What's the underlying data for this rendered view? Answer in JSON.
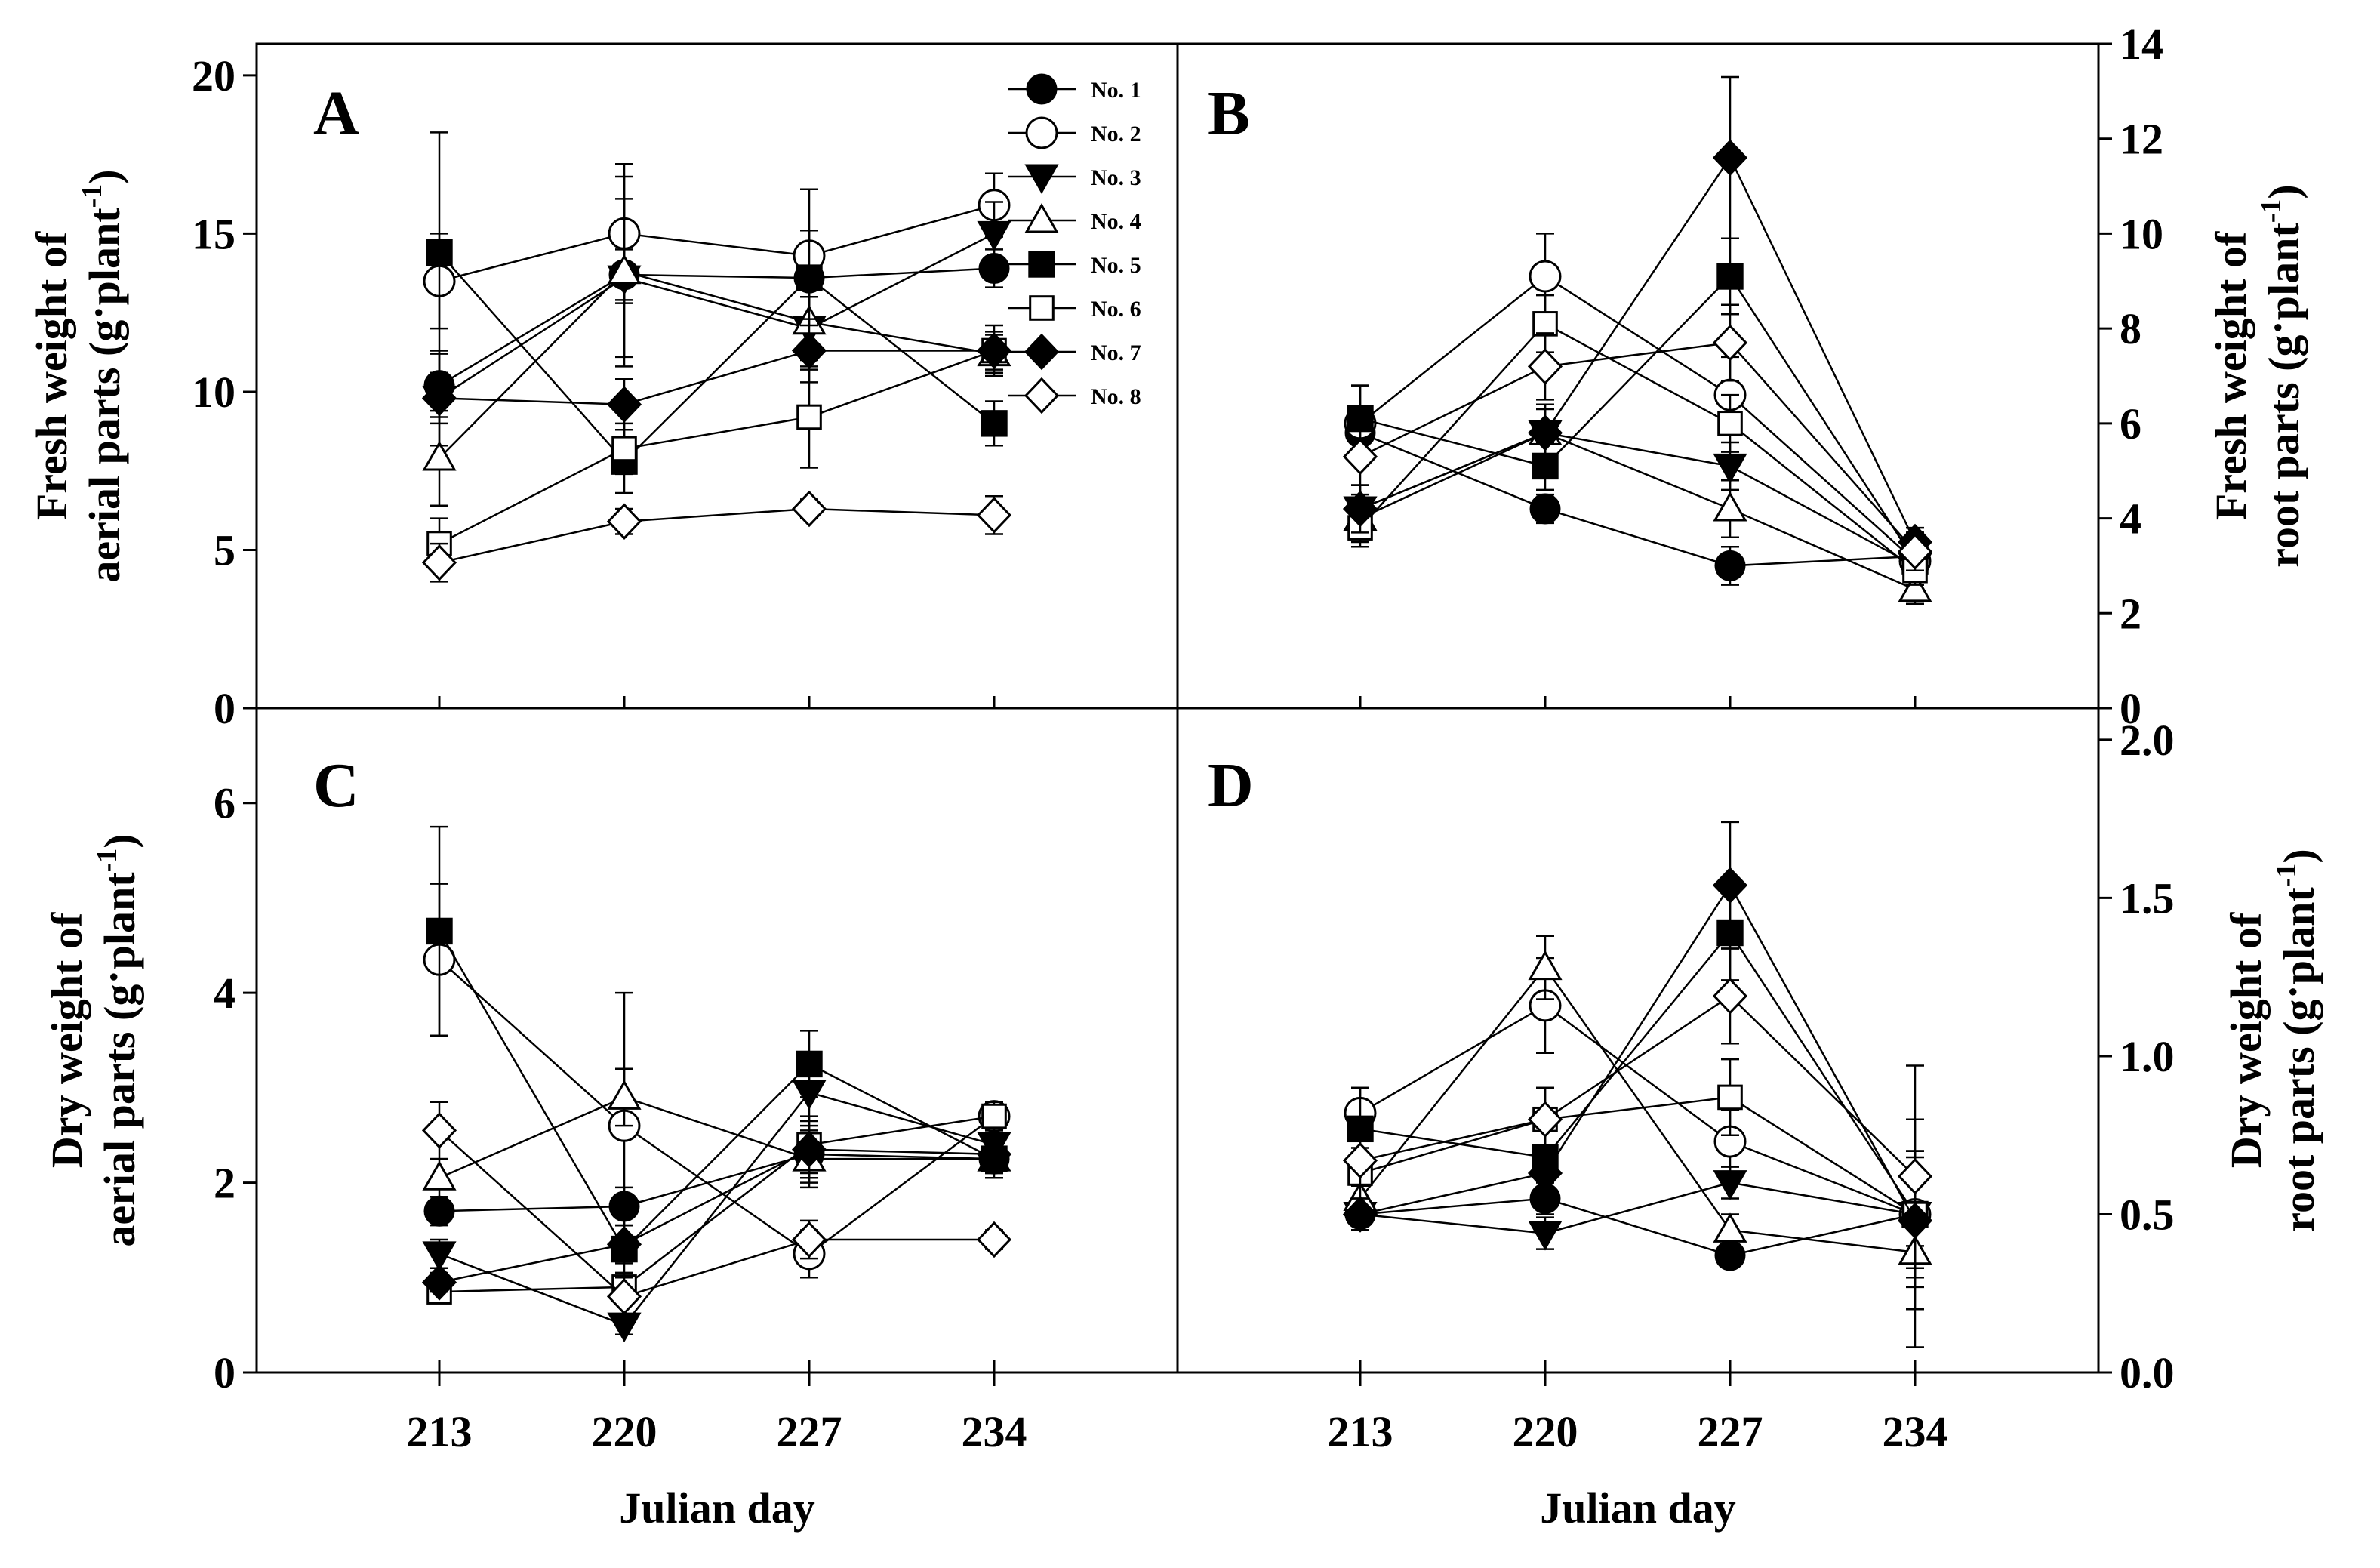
{
  "chart_data": {
    "type": "line",
    "xlabel": "Julian day",
    "x": [
      213,
      220,
      227,
      234
    ],
    "legend": {
      "placement": "top-right of panel A",
      "entries": [
        {
          "name": "No. 1",
          "marker": "circle",
          "fill": "filled"
        },
        {
          "name": "No. 2",
          "marker": "circle",
          "fill": "open"
        },
        {
          "name": "No. 3",
          "marker": "triangle-down",
          "fill": "filled"
        },
        {
          "name": "No. 4",
          "marker": "triangle-up",
          "fill": "open"
        },
        {
          "name": "No. 5",
          "marker": "square",
          "fill": "filled"
        },
        {
          "name": "No. 6",
          "marker": "square",
          "fill": "open"
        },
        {
          "name": "No. 7",
          "marker": "diamond",
          "fill": "filled"
        },
        {
          "name": "No. 8",
          "marker": "diamond",
          "fill": "open"
        }
      ]
    },
    "panels": [
      {
        "id": "A",
        "label": "A",
        "ylabel_line1": "Fresh weight of",
        "ylabel_line2_pre": "aerial parts (g",
        "ylabel_line2_mid": "plant",
        "ylabel_sup": "-1",
        "ylabel_line2_post": ")",
        "ylabel_side": "left",
        "ylim": [
          0,
          21
        ],
        "yticks": [
          0,
          5,
          10,
          15,
          20
        ],
        "ytick_labels": [
          "0",
          "5",
          "10",
          "15",
          "20"
        ],
        "series": [
          {
            "name": "No. 1",
            "values": [
              10.2,
              13.7,
              13.6,
              13.9
            ],
            "err": [
              1.0,
              0.8,
              1.5,
              0.6
            ]
          },
          {
            "name": "No. 2",
            "values": [
              13.5,
              15.0,
              14.3,
              15.9
            ],
            "err": [
              1.5,
              2.2,
              2.1,
              1.0
            ]
          },
          {
            "name": "No. 3",
            "values": [
              9.8,
              13.6,
              12.0,
              15.0
            ],
            "err": [
              0.8,
              2.5,
              1.0,
              1.0
            ]
          },
          {
            "name": "No. 4",
            "values": [
              7.9,
              13.8,
              12.2,
              11.2
            ],
            "err": [
              1.5,
              3.0,
              1.5,
              0.6
            ]
          },
          {
            "name": "No. 5",
            "values": [
              14.4,
              7.8,
              13.6,
              9.0
            ],
            "err": [
              3.8,
              1.0,
              1.5,
              0.7
            ]
          },
          {
            "name": "No. 6",
            "values": [
              5.2,
              8.2,
              9.2,
              11.3
            ],
            "err": [
              0.8,
              0.8,
              1.6,
              0.8
            ]
          },
          {
            "name": "No. 7",
            "values": [
              9.8,
              9.6,
              11.3,
              11.3
            ],
            "err": [
              1.5,
              0.8,
              1.0,
              0.6
            ]
          },
          {
            "name": "No. 8",
            "values": [
              4.6,
              5.9,
              6.3,
              6.1
            ],
            "err": [
              0.6,
              0.4,
              0.3,
              0.6
            ]
          }
        ]
      },
      {
        "id": "B",
        "label": "B",
        "ylabel_line1": "Fresh weight of",
        "ylabel_line2_pre": "root parts (g",
        "ylabel_line2_mid": "plant",
        "ylabel_sup": "-1",
        "ylabel_line2_post": ")",
        "ylabel_side": "right",
        "ylim": [
          0,
          14
        ],
        "yticks": [
          0,
          2,
          4,
          6,
          8,
          10,
          12,
          14
        ],
        "ytick_labels": [
          "0",
          "2",
          "4",
          "6",
          "8",
          "10",
          "12",
          "14"
        ],
        "series": [
          {
            "name": "No. 1",
            "values": [
              5.8,
              4.2,
              3.0,
              3.2
            ],
            "err": [
              0.5,
              0.3,
              0.4,
              0.3
            ]
          },
          {
            "name": "No. 2",
            "values": [
              6.0,
              9.1,
              6.6,
              3.1
            ],
            "err": [
              0.8,
              0.9,
              0.8,
              0.4
            ]
          },
          {
            "name": "No. 3",
            "values": [
              4.2,
              5.8,
              5.1,
              3.0
            ],
            "err": [
              0.5,
              0.5,
              0.5,
              0.4
            ]
          },
          {
            "name": "No. 4",
            "values": [
              4.0,
              5.8,
              4.2,
              2.5
            ],
            "err": [
              0.5,
              0.6,
              0.6,
              0.3
            ]
          },
          {
            "name": "No. 5",
            "values": [
              6.1,
              5.1,
              9.1,
              3.1
            ],
            "err": [
              0.7,
              0.5,
              0.8,
              0.3
            ]
          },
          {
            "name": "No. 6",
            "values": [
              3.8,
              8.1,
              6.0,
              2.9
            ],
            "err": [
              0.4,
              0.6,
              0.6,
              0.3
            ]
          },
          {
            "name": "No. 7",
            "values": [
              4.2,
              5.8,
              11.6,
              3.5
            ],
            "err": [
              0.5,
              0.6,
              1.7,
              0.3
            ]
          },
          {
            "name": "No. 8",
            "values": [
              5.3,
              7.2,
              7.7,
              3.3
            ],
            "err": [
              0.6,
              0.7,
              0.8,
              0.4
            ]
          }
        ]
      },
      {
        "id": "C",
        "label": "C",
        "ylabel_line1": "Dry weight of",
        "ylabel_line2_pre": "aerial parts (g",
        "ylabel_line2_mid": "plant",
        "ylabel_sup": "-1",
        "ylabel_line2_post": ")",
        "ylabel_side": "left",
        "ylim": [
          0,
          7
        ],
        "yticks": [
          0,
          2,
          4,
          6
        ],
        "ytick_labels": [
          "0",
          "2",
          "4",
          "6"
        ],
        "series": [
          {
            "name": "No. 1",
            "values": [
              1.7,
              1.75,
              2.3,
              2.25
            ],
            "err": [
              0.15,
              0.2,
              0.3,
              0.15
            ]
          },
          {
            "name": "No. 2",
            "values": [
              4.35,
              2.6,
              1.25,
              2.7
            ],
            "err": [
              0.8,
              1.4,
              0.25,
              0.15
            ]
          },
          {
            "name": "No. 3",
            "values": [
              1.25,
              0.5,
              2.95,
              2.4
            ],
            "err": [
              0.15,
              0.1,
              0.3,
              0.2
            ]
          },
          {
            "name": "No. 4",
            "values": [
              2.05,
              2.9,
              2.25,
              2.25
            ],
            "err": [
              0.2,
              0.3,
              0.3,
              0.2
            ]
          },
          {
            "name": "No. 5",
            "values": [
              4.65,
              1.3,
              3.25,
              2.25
            ],
            "err": [
              1.1,
              0.25,
              0.35,
              0.15
            ]
          },
          {
            "name": "No. 6",
            "values": [
              0.85,
              0.9,
              2.4,
              2.7
            ],
            "err": [
              0.1,
              0.15,
              0.3,
              0.15
            ]
          },
          {
            "name": "No. 7",
            "values": [
              0.95,
              1.35,
              2.35,
              2.3
            ],
            "err": [
              0.1,
              0.2,
              0.3,
              0.15
            ]
          },
          {
            "name": "No. 8",
            "values": [
              2.55,
              0.8,
              1.4,
              1.4
            ],
            "err": [
              0.3,
              0.2,
              0.2,
              0.1
            ]
          }
        ]
      },
      {
        "id": "D",
        "label": "D",
        "ylabel_line1": "Dry weight of",
        "ylabel_line2_pre": "root parts (g",
        "ylabel_line2_mid": "plant",
        "ylabel_sup": "-1",
        "ylabel_line2_post": ")",
        "ylabel_side": "right",
        "ylim": [
          0,
          2.1
        ],
        "yticks": [
          0,
          0.5,
          1.0,
          1.5,
          2.0
        ],
        "ytick_labels": [
          "0.0",
          "0.5",
          "1.0",
          "1.5",
          "2.0"
        ],
        "series": [
          {
            "name": "No. 1",
            "values": [
              0.5,
              0.55,
              0.37,
              0.5
            ],
            "err": [
              0.05,
              0.05,
              0.03,
              0.1
            ]
          },
          {
            "name": "No. 2",
            "values": [
              0.82,
              1.16,
              0.73,
              0.5
            ],
            "err": [
              0.08,
              0.15,
              0.1,
              0.2
            ]
          },
          {
            "name": "No. 3",
            "values": [
              0.5,
              0.44,
              0.6,
              0.5
            ],
            "err": [
              0.05,
              0.05,
              0.05,
              0.3
            ]
          },
          {
            "name": "No. 4",
            "values": [
              0.55,
              1.28,
              0.45,
              0.38
            ],
            "err": [
              0.05,
              0.1,
              0.05,
              0.3
            ]
          },
          {
            "name": "No. 5",
            "values": [
              0.77,
              0.68,
              1.39,
              0.5
            ],
            "err": [
              0.13,
              0.1,
              0.15,
              0.2
            ]
          },
          {
            "name": "No. 6",
            "values": [
              0.63,
              0.8,
              0.87,
              0.5
            ],
            "err": [
              0.08,
              0.1,
              0.12,
              0.2
            ]
          },
          {
            "name": "No. 7",
            "values": [
              0.5,
              0.63,
              1.54,
              0.48
            ],
            "err": [
              0.05,
              0.05,
              0.2,
              0.15
            ]
          },
          {
            "name": "No. 8",
            "values": [
              0.67,
              0.8,
              1.19,
              0.62
            ],
            "err": [
              0.08,
              0.1,
              0.15,
              0.35
            ]
          }
        ]
      }
    ]
  }
}
